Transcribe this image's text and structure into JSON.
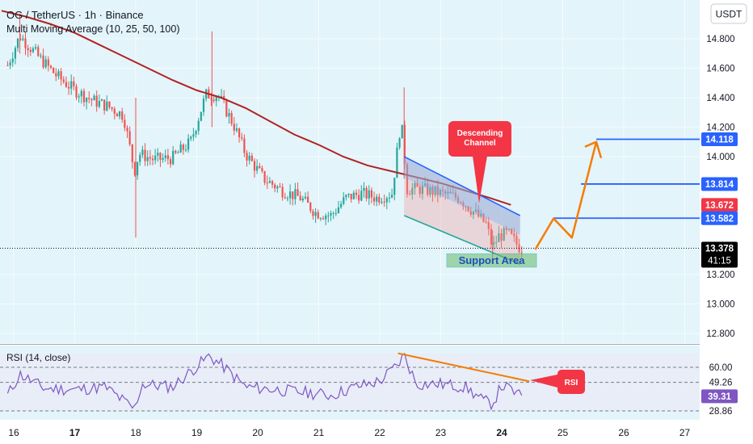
{
  "header": {
    "symbol_line": "OG / TetherUS · 1h · Binance",
    "indicator_line": "Multi Moving Average (10, 25, 50, 100)",
    "currency": "USDT"
  },
  "colors": {
    "background": "#e3f4fa",
    "bull": "#26a69a",
    "bear": "#ef5350",
    "ma": "#b22222",
    "blue_line": "#2962ff",
    "arrow": "#f57c00",
    "channel_upper": "#2962ff",
    "channel_lower": "#26a69a",
    "rsi_line": "#7e57c2",
    "rsi_trend": "#f57c00",
    "callout": "#f23645"
  },
  "chart_data": [
    {
      "type": "candlestick",
      "ylim": [
        12.75,
        14.97
      ],
      "y_ticks": [
        "14.800",
        "14.600",
        "14.400",
        "14.200",
        "14.000",
        "13.200",
        "13.000",
        "12.800"
      ],
      "x_ticks": [
        "16",
        "17",
        "18",
        "19",
        "20",
        "21",
        "22",
        "23",
        "24",
        "25",
        "26",
        "27"
      ],
      "price_labels": [
        {
          "value": 14.118,
          "label": "14.118",
          "color": "#2962ff"
        },
        {
          "value": 13.814,
          "label": "13.814",
          "color": "#2962ff"
        },
        {
          "value": 13.672,
          "label": "13.672",
          "color": "#f23645"
        },
        {
          "value": 13.582,
          "label": "13.582",
          "color": "#2962ff"
        },
        {
          "value": 13.378,
          "label": "13.378",
          "color": "#000000"
        }
      ],
      "countdown": "41:15",
      "current_price": 13.378,
      "moving_average_approx": [
        [
          15.8,
          14.99
        ],
        [
          16.2,
          14.95
        ],
        [
          16.6,
          14.9
        ],
        [
          17.0,
          14.84
        ],
        [
          17.4,
          14.76
        ],
        [
          17.8,
          14.68
        ],
        [
          18.2,
          14.6
        ],
        [
          18.6,
          14.52
        ],
        [
          19.0,
          14.45
        ],
        [
          19.4,
          14.4
        ],
        [
          19.8,
          14.33
        ],
        [
          20.2,
          14.24
        ],
        [
          20.6,
          14.15
        ],
        [
          21.0,
          14.08
        ],
        [
          21.4,
          14.0
        ],
        [
          21.8,
          13.94
        ],
        [
          22.2,
          13.9
        ],
        [
          22.6,
          13.86
        ],
        [
          23.0,
          13.82
        ],
        [
          23.4,
          13.77
        ],
        [
          23.8,
          13.72
        ],
        [
          24.15,
          13.672
        ]
      ],
      "annotations": {
        "horizontal_levels": [
          14.118,
          13.814,
          13.582
        ],
        "descending_channel": {
          "label": "Descending Channel",
          "upper": [
            [
              22.4,
              14.0
            ],
            [
              24.3,
              13.6
            ]
          ],
          "lower": [
            [
              22.4,
              13.6
            ],
            [
              24.3,
              13.27
            ]
          ]
        },
        "support_area": {
          "label": "Support Area",
          "range": [
            13.25,
            13.34
          ]
        },
        "projection_path": [
          [
            24.55,
            13.37
          ],
          [
            24.85,
            13.58
          ],
          [
            25.15,
            13.45
          ],
          [
            25.55,
            14.1
          ],
          [
            25.75,
            13.98
          ]
        ]
      }
    },
    {
      "type": "line",
      "title": "RSI (14, close)",
      "levels": [
        60.0,
        49.26,
        28.86
      ],
      "tick_labels": [
        "60.00",
        "49.26",
        "39.31",
        "28.86"
      ],
      "current_value": 39.31,
      "ylim": [
        27.5,
        73
      ],
      "trendline": [
        [
          22.3,
          70
        ],
        [
          24.45,
          50
        ]
      ],
      "callout_label": "RSI"
    }
  ]
}
